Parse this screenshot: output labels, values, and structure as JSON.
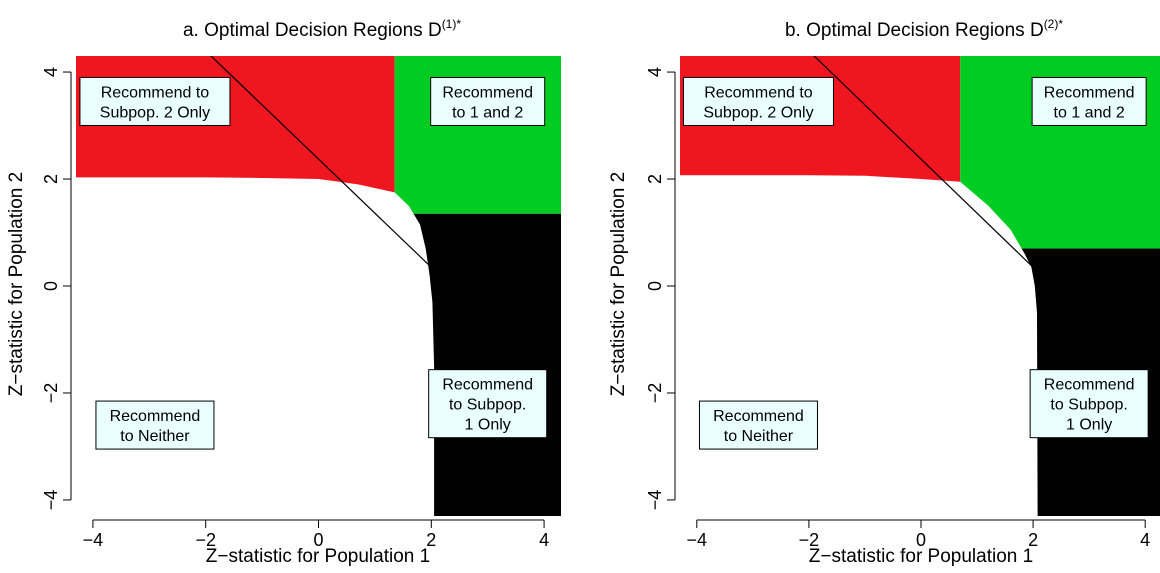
{
  "colors": {
    "red": "#f0161f",
    "green": "#00cc22",
    "black": "#000000",
    "white": "#ffffff",
    "label_box_fill": "#eaffff"
  },
  "panels": [
    {
      "title_main": "a. Optimal Decision Regions D",
      "title_sup": "(1)*",
      "xlabel": "Z−statistic for Population 1",
      "ylabel": "Z−statistic for Population 2",
      "region_labels": [
        {
          "id": "subpop2",
          "lines": [
            "Recommend to",
            "Subpop. 2 Only"
          ]
        },
        {
          "id": "both",
          "lines": [
            "Recommend",
            "to 1 and 2"
          ]
        },
        {
          "id": "subpop1",
          "lines": [
            "Recommend",
            "to Subpop.",
            "1 Only"
          ]
        },
        {
          "id": "neither",
          "lines": [
            "Recommend",
            "to Neither"
          ]
        }
      ]
    },
    {
      "title_main": "b. Optimal Decision Regions D",
      "title_sup": "(2)*",
      "xlabel": "Z−statistic for Population 1",
      "ylabel": "Z−statistic for Population 2",
      "region_labels": [
        {
          "id": "subpop2",
          "lines": [
            "Recommend to",
            "Subpop. 2 Only"
          ]
        },
        {
          "id": "both",
          "lines": [
            "Recommend",
            "to 1 and 2"
          ]
        },
        {
          "id": "subpop1",
          "lines": [
            "Recommend",
            "to Subpop.",
            "1 Only"
          ]
        },
        {
          "id": "neither",
          "lines": [
            "Recommend",
            "to Neither"
          ]
        }
      ]
    }
  ],
  "chart_data": [
    {
      "type": "area",
      "title": "a. Optimal Decision Regions D(1)*",
      "xlabel": "Z−statistic for Population 1",
      "ylabel": "Z−statistic for Population 2",
      "xlim": [
        -4.3,
        4.3
      ],
      "ylim": [
        -4.3,
        4.3
      ],
      "xticks": [
        -4,
        -2,
        0,
        2,
        4
      ],
      "yticks": [
        -4,
        -2,
        0,
        2,
        4
      ],
      "xtick_labels": [
        "−4",
        "−2",
        "0",
        "2",
        "4"
      ],
      "ytick_labels": [
        "−4",
        "−2",
        "0",
        "2",
        "4"
      ],
      "region_series": [
        "Recommend to Subpop. 2 Only",
        "Recommend to 1 and 2",
        "Recommend to Subpop. 1 Only",
        "Recommend to Neither"
      ],
      "thresholds": {
        "z1_split": 1.35,
        "z2_split": 1.35
      },
      "neither_boundary": [
        [
          -4.3,
          2.03
        ],
        [
          -2.0,
          2.03
        ],
        [
          -1.0,
          2.02
        ],
        [
          0.0,
          2.0
        ],
        [
          0.7,
          1.9
        ],
        [
          1.35,
          1.75
        ],
        [
          1.6,
          1.5
        ],
        [
          1.8,
          1.15
        ],
        [
          1.9,
          0.7
        ],
        [
          1.97,
          0.2
        ],
        [
          2.02,
          -0.3
        ],
        [
          2.05,
          -1.5
        ],
        [
          2.05,
          -4.3
        ]
      ],
      "diagonal_line": [
        [
          -2.3,
          4.7
        ],
        [
          2.0,
          0.35
        ]
      ]
    },
    {
      "type": "area",
      "title": "b. Optimal Decision Regions D(2)*",
      "xlabel": "Z−statistic for Population 1",
      "ylabel": "Z−statistic for Population 2",
      "xlim": [
        -4.3,
        4.3
      ],
      "ylim": [
        -4.3,
        4.3
      ],
      "xticks": [
        -4,
        -2,
        0,
        2,
        4
      ],
      "yticks": [
        -4,
        -2,
        0,
        2,
        4
      ],
      "xtick_labels": [
        "−4",
        "−2",
        "0",
        "2",
        "4"
      ],
      "ytick_labels": [
        "−4",
        "−2",
        "0",
        "2",
        "4"
      ],
      "region_series": [
        "Recommend to Subpop. 2 Only",
        "Recommend to 1 and 2",
        "Recommend to Subpop. 1 Only",
        "Recommend to Neither"
      ],
      "thresholds": {
        "z1_split": 0.7,
        "z2_split": 0.7
      },
      "neither_boundary": [
        [
          -4.3,
          2.07
        ],
        [
          -2.0,
          2.07
        ],
        [
          -1.0,
          2.06
        ],
        [
          0.0,
          2.0
        ],
        [
          0.7,
          1.95
        ],
        [
          1.2,
          1.5
        ],
        [
          1.6,
          1.05
        ],
        [
          1.85,
          0.6
        ],
        [
          1.97,
          0.35
        ],
        [
          2.03,
          0.0
        ],
        [
          2.07,
          -0.5
        ],
        [
          2.08,
          -4.3
        ]
      ],
      "diagonal_line": [
        [
          -2.3,
          4.7
        ],
        [
          2.0,
          0.35
        ]
      ]
    }
  ]
}
